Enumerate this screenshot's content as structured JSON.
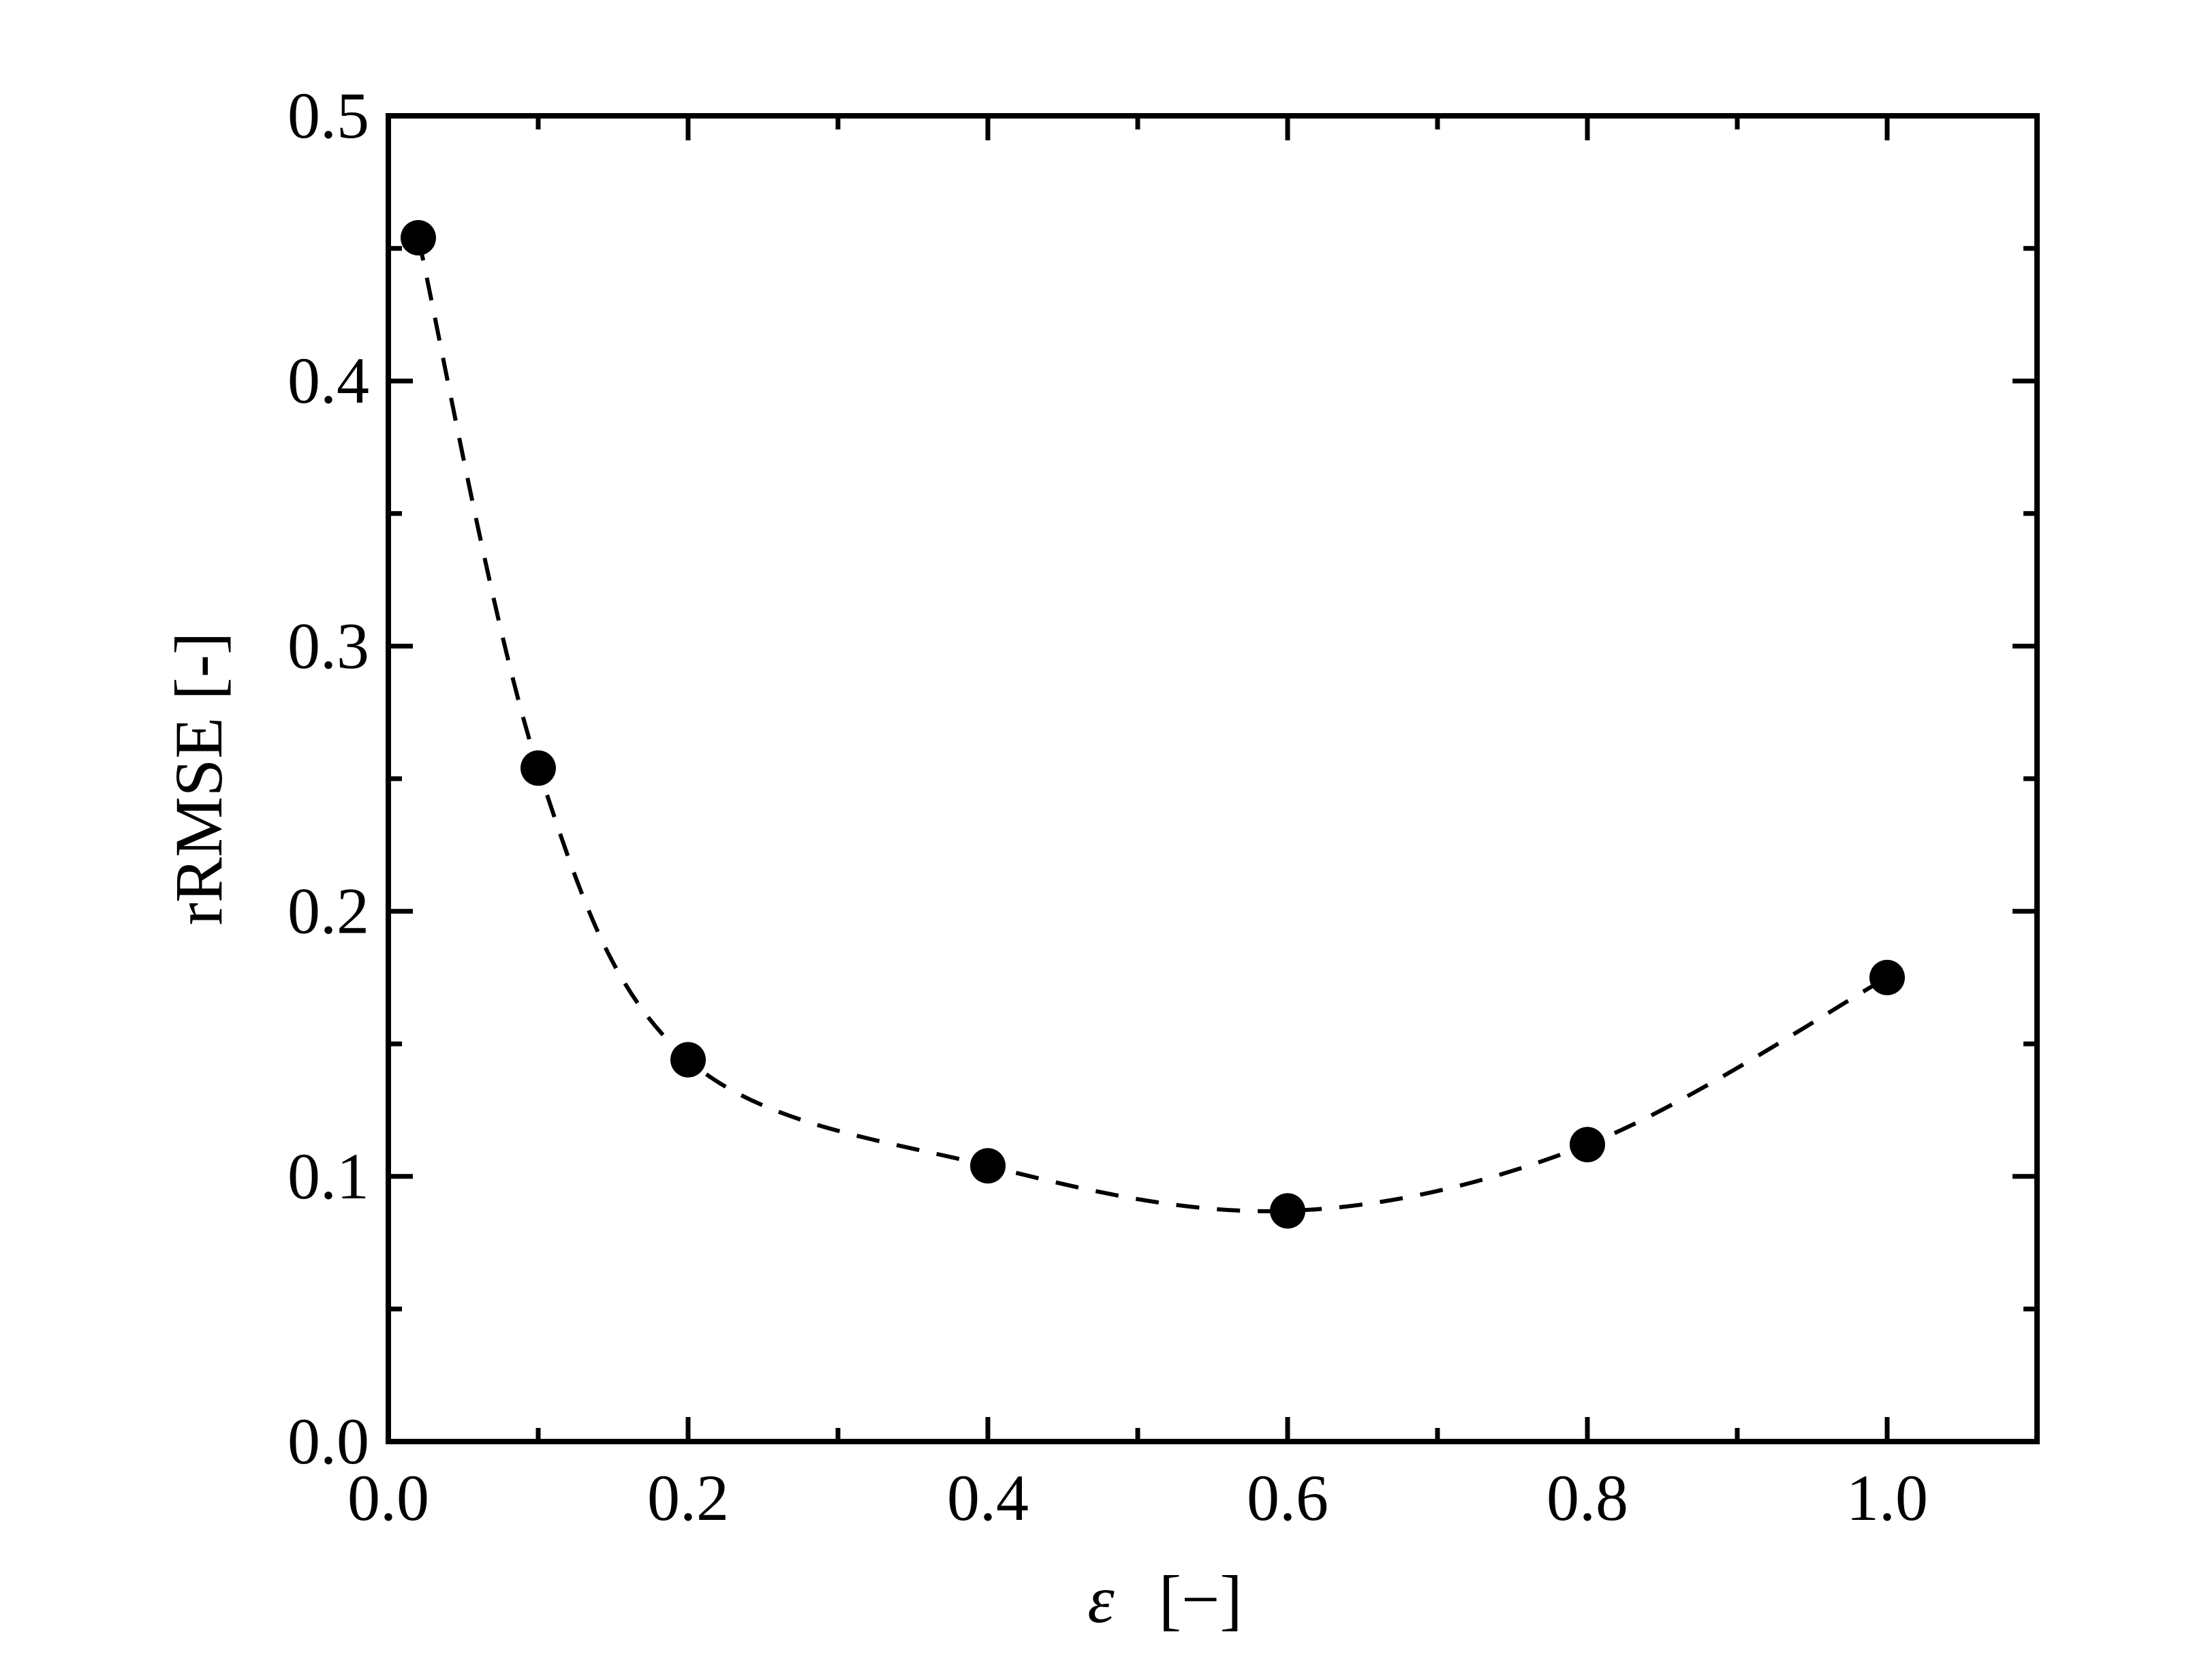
{
  "chart_data": {
    "type": "scatter",
    "title": "",
    "xlabel": {
      "symbol": "ε",
      "unit": "[−]"
    },
    "ylabel": "rRMSE [-]",
    "xlim": [
      0.0,
      1.1
    ],
    "ylim": [
      0.0,
      0.5
    ],
    "x_ticks": [
      "0.0",
      "0.2",
      "0.4",
      "0.6",
      "0.8",
      "1.0"
    ],
    "y_ticks": [
      "0.0",
      "0.1",
      "0.2",
      "0.3",
      "0.4",
      "0.5"
    ],
    "x_minor_ticks": [
      0.1,
      0.3,
      0.5,
      0.7,
      0.9
    ],
    "y_minor_ticks": [
      0.05,
      0.15,
      0.25,
      0.35,
      0.45
    ],
    "grid": false,
    "legend": "none",
    "series": [
      {
        "marker": "filled-circle",
        "line_style": "dashed",
        "color": "#000000",
        "x": [
          0.02,
          0.1,
          0.2,
          0.4,
          0.6,
          0.8,
          1.0
        ],
        "y": [
          0.454,
          0.254,
          0.144,
          0.104,
          0.087,
          0.112,
          0.175
        ]
      }
    ]
  }
}
